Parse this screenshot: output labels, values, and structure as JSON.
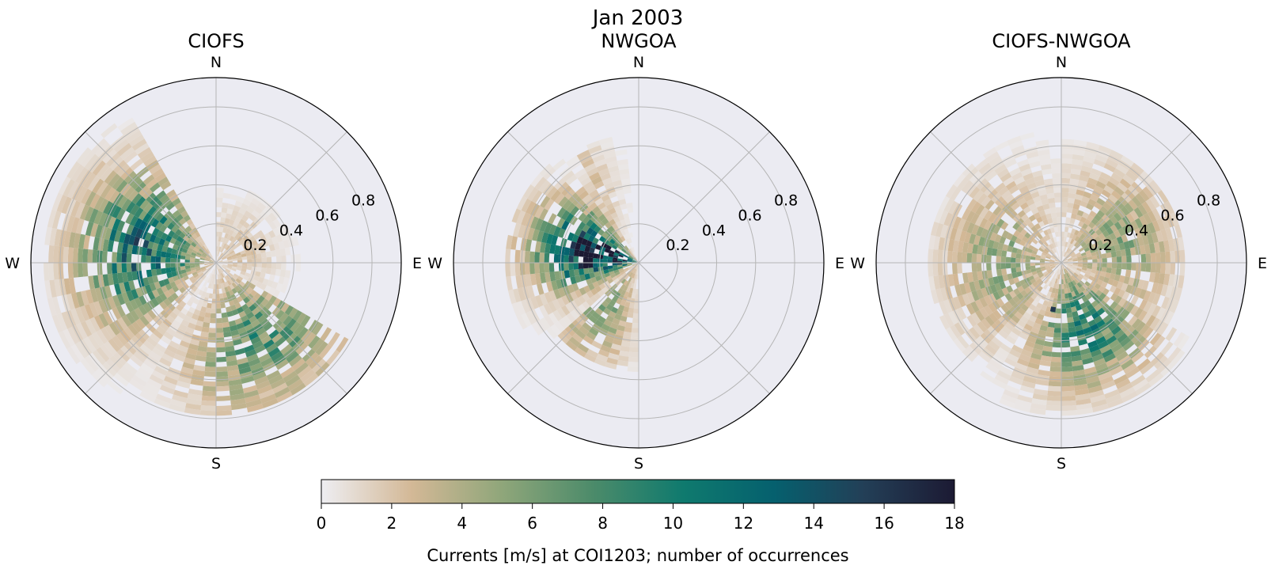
{
  "figure": {
    "title": "Jan 2003",
    "colorbar_label": "Currents [m/s] at COI1203; number of occurrences"
  },
  "chart_data": [
    {
      "type": "polar_histogram",
      "title": "CIOFS",
      "direction_labels": [
        "N",
        "E",
        "S",
        "W"
      ],
      "r_ticks": [
        0.2,
        0.4,
        0.6,
        0.8
      ],
      "r_tick_labels": [
        "0.2",
        "0.4",
        "0.6",
        "0.8"
      ],
      "rlim": [
        0,
        0.95
      ],
      "bin_width_deg": 6,
      "bin_width_speed": 0.025,
      "background_color": "#ebebf2",
      "grid": true,
      "lobes": [
        {
          "dir_start": 216,
          "dir_end": 330,
          "r_start": 0.01,
          "r_end": 0.88,
          "peak_dir": 280,
          "peak_r": 0.38,
          "peak": 11.5,
          "spread_dir": 32,
          "spread_r": 0.22
        },
        {
          "dir_start": 120,
          "dir_end": 216,
          "r_start": 0.01,
          "r_end": 0.78,
          "peak_dir": 150,
          "peak_r": 0.45,
          "peak": 7.5,
          "spread_dir": 30,
          "spread_r": 0.22
        },
        {
          "dir_start": 0,
          "dir_end": 120,
          "r_start": 0.01,
          "r_end": 0.45,
          "peak_dir": 60,
          "peak_r": 0.12,
          "peak": 2.0,
          "spread_dir": 50,
          "spread_r": 0.15
        }
      ]
    },
    {
      "type": "polar_histogram",
      "title": "NWGOA",
      "direction_labels": [
        "N",
        "E",
        "S",
        "W"
      ],
      "r_ticks": [
        0.2,
        0.4,
        0.6,
        0.8
      ],
      "r_tick_labels": [
        "0.2",
        "0.4",
        "0.6",
        "0.8"
      ],
      "rlim": [
        0,
        0.95
      ],
      "bin_width_deg": 6,
      "bin_width_speed": 0.025,
      "background_color": "#ebebf2",
      "grid": true,
      "lobes": [
        {
          "dir_start": 228,
          "dir_end": 330,
          "r_start": 0.01,
          "r_end": 0.68,
          "peak_dir": 282,
          "peak_r": 0.22,
          "peak": 18.0,
          "spread_dir": 22,
          "spread_r": 0.2
        },
        {
          "dir_start": 180,
          "dir_end": 228,
          "r_start": 0.01,
          "r_end": 0.55,
          "peak_dir": 215,
          "peak_r": 0.3,
          "peak": 5.0,
          "spread_dir": 18,
          "spread_r": 0.2
        },
        {
          "dir_start": 330,
          "dir_end": 360,
          "r_start": 0.01,
          "r_end": 0.65,
          "peak_dir": 320,
          "peak_r": 0.45,
          "peak": 3.0,
          "spread_dir": 15,
          "spread_r": 0.2
        }
      ]
    },
    {
      "type": "polar_histogram",
      "title": "CIOFS-NWGOA",
      "direction_labels": [
        "N",
        "E",
        "S",
        "W"
      ],
      "r_ticks": [
        0.2,
        0.4,
        0.6,
        0.8
      ],
      "r_tick_labels": [
        "0.2",
        "0.4",
        "0.6",
        "0.8"
      ],
      "rlim": [
        0,
        0.95
      ],
      "bin_width_deg": 6,
      "bin_width_speed": 0.025,
      "background_color": "#ebebf2",
      "grid": true,
      "lobes": [
        {
          "dir_start": 120,
          "dir_end": 216,
          "r_start": 0.01,
          "r_end": 0.78,
          "peak_dir": 160,
          "peak_r": 0.35,
          "peak": 9.0,
          "spread_dir": 26,
          "spread_r": 0.2
        },
        {
          "dir_start": 0,
          "dir_end": 120,
          "r_start": 0.01,
          "r_end": 0.62,
          "peak_dir": 70,
          "peak_r": 0.3,
          "peak": 5.0,
          "spread_dir": 40,
          "spread_r": 0.2
        },
        {
          "dir_start": 216,
          "dir_end": 360,
          "r_start": 0.01,
          "r_end": 0.68,
          "peak_dir": 270,
          "peak_r": 0.3,
          "peak": 5.0,
          "spread_dir": 45,
          "spread_r": 0.2
        }
      ],
      "highlight": {
        "dir": 190,
        "r": 0.23,
        "value": 16
      }
    }
  ],
  "colorbar": {
    "min": 0,
    "max": 18,
    "ticks": [
      0,
      2,
      4,
      6,
      8,
      10,
      12,
      14,
      16,
      18
    ],
    "tick_labels": [
      "0",
      "2",
      "4",
      "6",
      "8",
      "10",
      "12",
      "14",
      "16",
      "18"
    ],
    "colormap": "cmocean rain",
    "colors": [
      "#eeeef2",
      "#d3b896",
      "#8fa67a",
      "#4c8b6a",
      "#0f7a6e",
      "#05606e",
      "#233f57",
      "#1c1a33"
    ]
  }
}
